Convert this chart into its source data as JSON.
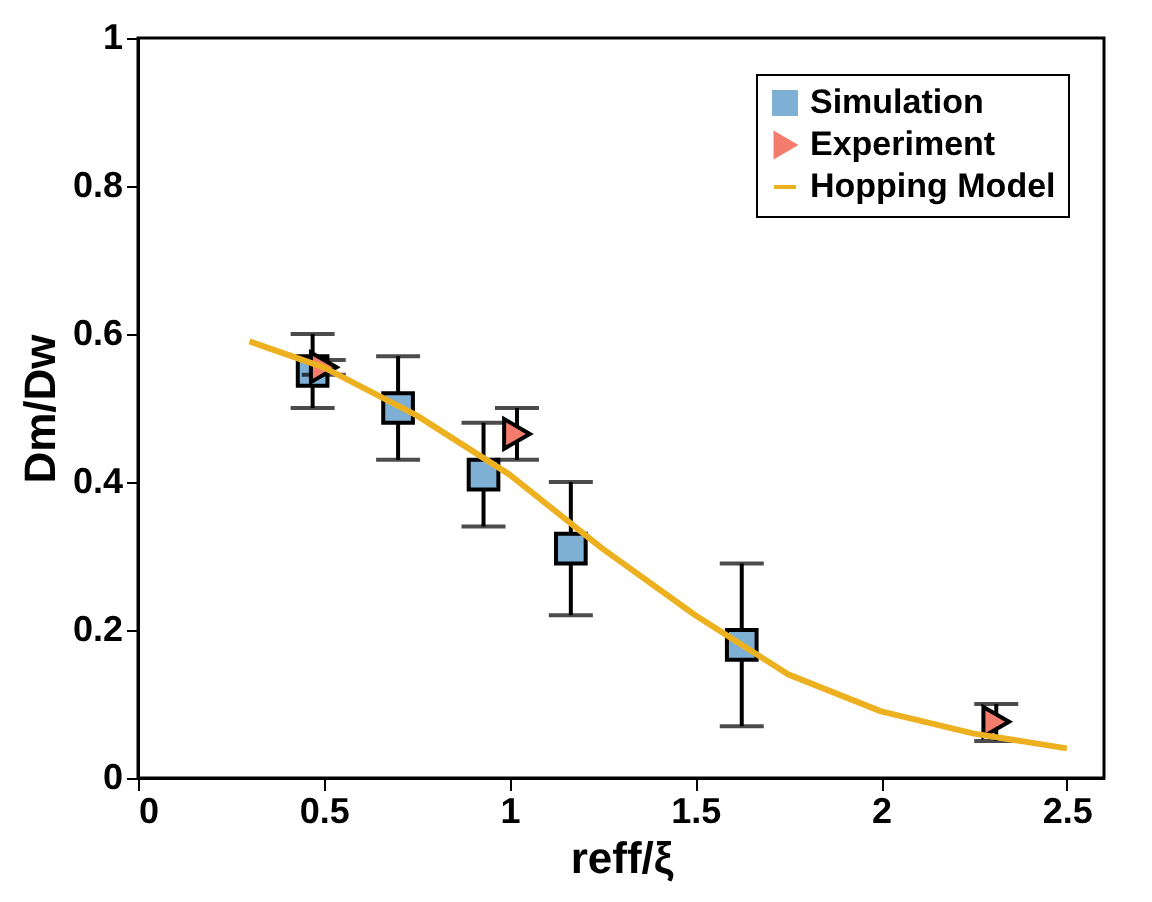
{
  "chart_data": {
    "type": "scatter",
    "xlabel": "reff/ξ",
    "ylabel": "Dm/Dw",
    "xlim": [
      0,
      2.6
    ],
    "ylim": [
      0,
      1
    ],
    "xticks": [
      0,
      0.5,
      1,
      1.5,
      2,
      2.5
    ],
    "yticks": [
      0,
      0.2,
      0.4,
      0.6,
      0.8,
      1
    ],
    "grid": false,
    "legend": "top right",
    "series": [
      {
        "name": "Simulation",
        "marker": "square",
        "color": "#7eb0d5",
        "x": [
          0.47,
          0.7,
          0.93,
          1.165,
          1.625
        ],
        "values": [
          0.55,
          0.5,
          0.41,
          0.31,
          0.18
        ],
        "errors": [
          [
            0.5,
            0.6
          ],
          [
            0.43,
            0.57
          ],
          [
            0.34,
            0.48
          ],
          [
            0.22,
            0.4
          ],
          [
            0.07,
            0.29
          ]
        ]
      },
      {
        "name": "Experiment",
        "marker": "triangle",
        "color": "#f47c6c",
        "x": [
          0.5,
          1.02,
          2.31
        ],
        "values": [
          0.555,
          0.465,
          0.076
        ],
        "errors": [
          [
            0.545,
            0.565
          ],
          [
            0.43,
            0.5
          ],
          [
            0.05,
            0.1
          ]
        ]
      },
      {
        "name": "Hopping Model",
        "type": "line",
        "marker": "none",
        "color": "#edb120",
        "x": [
          0.3,
          0.5,
          0.75,
          1.0,
          1.25,
          1.5,
          1.75,
          2.0,
          2.25,
          2.5
        ],
        "values": [
          0.59,
          0.555,
          0.49,
          0.41,
          0.31,
          0.22,
          0.14,
          0.09,
          0.06,
          0.04
        ]
      }
    ]
  }
}
